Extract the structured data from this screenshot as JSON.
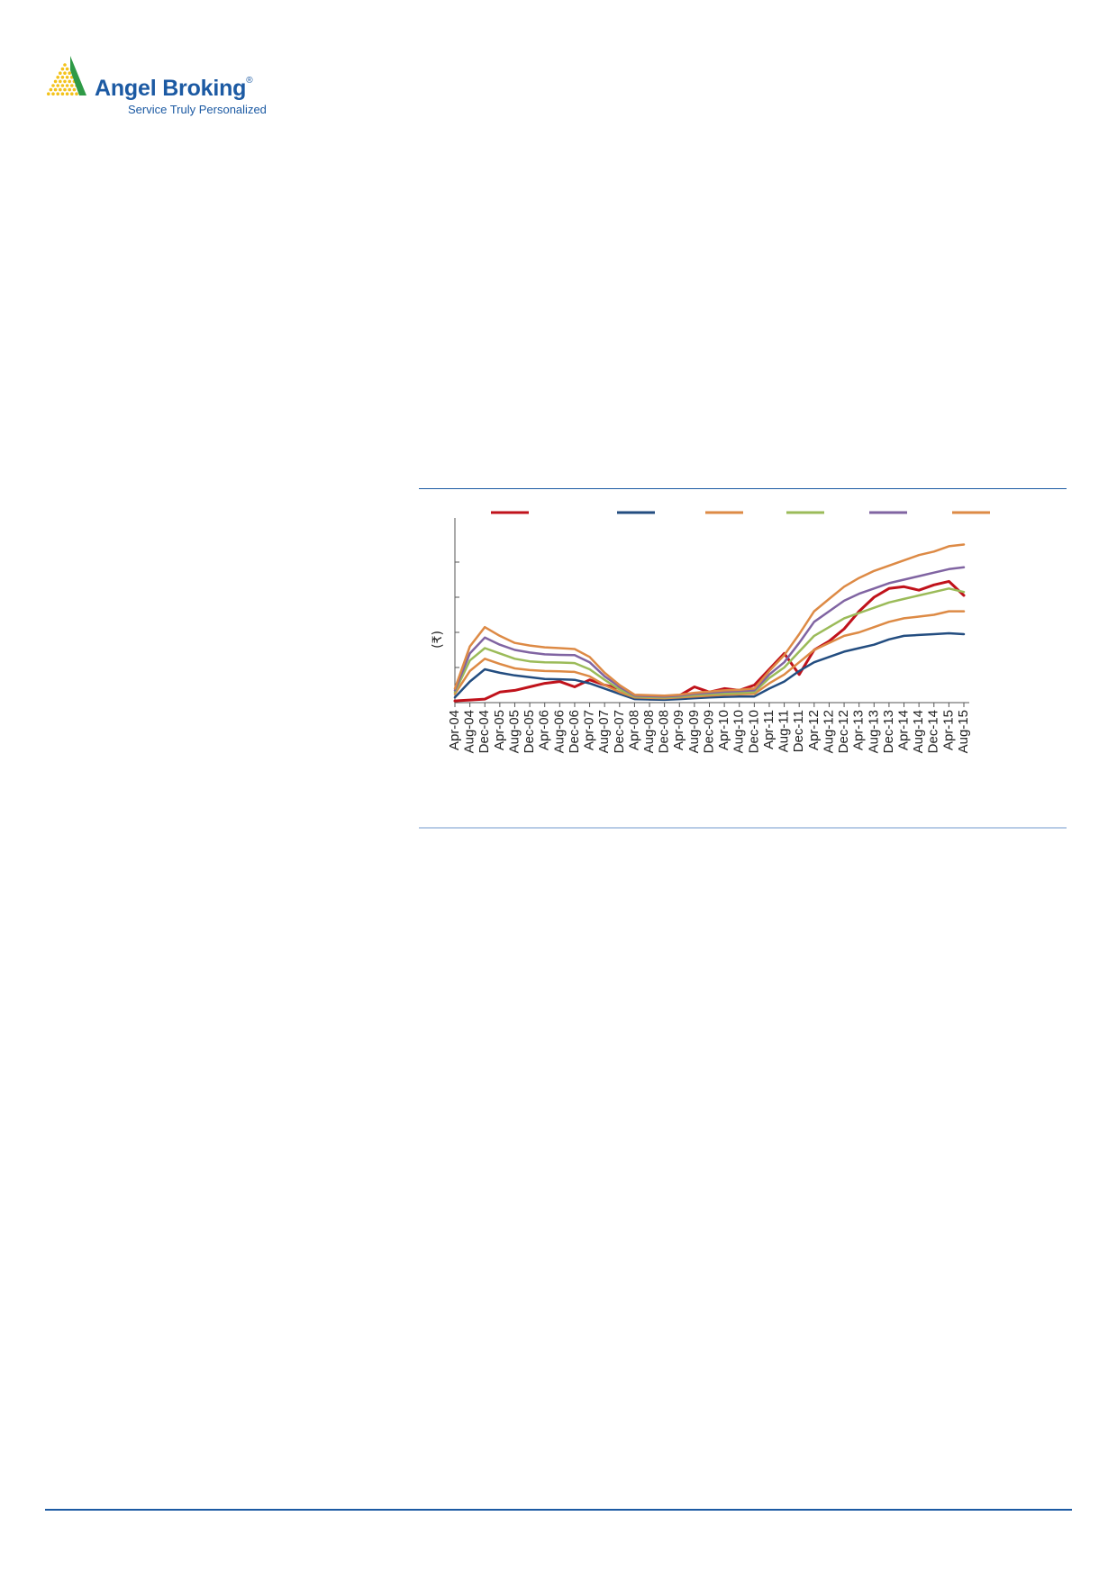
{
  "brand": {
    "name": "Angel Broking",
    "tagline": "Service Truly Personalized",
    "registered_mark": "®",
    "colors": {
      "primary": "#1c5aa3",
      "logo_green": "#2e9a46",
      "logo_yellow": "#f3c21a"
    }
  },
  "chart_data": {
    "type": "line",
    "ylabel": "(₹)",
    "categories": [
      "Apr-04",
      "Aug-04",
      "Dec-04",
      "Apr-05",
      "Aug-05",
      "Dec-05",
      "Apr-06",
      "Aug-06",
      "Dec-06",
      "Apr-07",
      "Aug-07",
      "Dec-07",
      "Apr-08",
      "Aug-08",
      "Dec-08",
      "Apr-09",
      "Aug-09",
      "Dec-09",
      "Apr-10",
      "Aug-10",
      "Dec-10",
      "Apr-11",
      "Aug-11",
      "Dec-11",
      "Apr-12",
      "Aug-12",
      "Dec-12",
      "Apr-13",
      "Aug-13",
      "Dec-13",
      "Apr-14",
      "Aug-14",
      "Dec-14",
      "Apr-15",
      "Aug-15"
    ],
    "ylim": [
      0,
      10
    ],
    "y_ticks": [
      0,
      2,
      4,
      6,
      8
    ],
    "y_tick_labels_visible": false,
    "grid": false,
    "legend": "top",
    "series": [
      {
        "color": "#c0121b",
        "line_width": 3,
        "values": [
          0.1,
          0.15,
          0.2,
          0.6,
          0.7,
          0.9,
          1.1,
          1.2,
          0.9,
          1.3,
          1.0,
          0.8,
          0.3,
          0.2,
          0.2,
          0.4,
          0.9,
          0.6,
          0.8,
          0.7,
          1.0,
          1.9,
          2.8,
          1.6,
          3.0,
          3.5,
          4.2,
          5.2,
          6.0,
          6.5,
          6.6,
          6.4,
          6.7,
          6.9,
          6.1
        ]
      },
      {
        "color": "#234d80",
        "line_width": 2.5,
        "values": [
          0.3,
          1.2,
          1.9,
          1.7,
          1.55,
          1.45,
          1.35,
          1.33,
          1.3,
          1.1,
          0.8,
          0.5,
          0.2,
          0.18,
          0.16,
          0.2,
          0.25,
          0.3,
          0.33,
          0.35,
          0.35,
          0.8,
          1.2,
          1.8,
          2.3,
          2.6,
          2.9,
          3.1,
          3.3,
          3.6,
          3.8,
          3.85,
          3.9,
          3.95,
          3.9
        ]
      },
      {
        "color": "#dd8a45",
        "line_width": 2.5,
        "values": [
          0.5,
          1.8,
          2.5,
          2.2,
          1.95,
          1.85,
          1.8,
          1.78,
          1.75,
          1.5,
          1.0,
          0.6,
          0.3,
          0.27,
          0.25,
          0.3,
          0.35,
          0.4,
          0.45,
          0.47,
          0.5,
          1.1,
          1.6,
          2.3,
          3.0,
          3.4,
          3.8,
          4.0,
          4.3,
          4.6,
          4.8,
          4.9,
          5.0,
          5.2,
          5.2
        ]
      },
      {
        "color": "#9bbb59",
        "line_width": 2.5,
        "values": [
          0.6,
          2.4,
          3.1,
          2.8,
          2.5,
          2.35,
          2.3,
          2.28,
          2.25,
          1.9,
          1.3,
          0.75,
          0.35,
          0.32,
          0.3,
          0.35,
          0.42,
          0.48,
          0.52,
          0.55,
          0.6,
          1.4,
          2.0,
          2.9,
          3.8,
          4.3,
          4.8,
          5.1,
          5.4,
          5.7,
          5.9,
          6.1,
          6.3,
          6.5,
          6.3
        ]
      },
      {
        "color": "#8064a2",
        "line_width": 2.5,
        "values": [
          0.7,
          2.8,
          3.7,
          3.3,
          3.0,
          2.85,
          2.75,
          2.72,
          2.7,
          2.3,
          1.5,
          0.9,
          0.4,
          0.37,
          0.35,
          0.4,
          0.5,
          0.56,
          0.62,
          0.65,
          0.7,
          1.6,
          2.3,
          3.4,
          4.6,
          5.2,
          5.8,
          6.2,
          6.5,
          6.8,
          7.0,
          7.2,
          7.4,
          7.6,
          7.7
        ]
      },
      {
        "color": "#dd8a45",
        "line_width": 2.5,
        "values": [
          0.8,
          3.2,
          4.3,
          3.8,
          3.4,
          3.25,
          3.15,
          3.1,
          3.05,
          2.6,
          1.7,
          1.0,
          0.45,
          0.42,
          0.4,
          0.45,
          0.56,
          0.63,
          0.7,
          0.73,
          0.8,
          1.8,
          2.7,
          3.9,
          5.2,
          5.9,
          6.6,
          7.1,
          7.5,
          7.8,
          8.1,
          8.4,
          8.6,
          8.9,
          9.0
        ]
      }
    ]
  }
}
